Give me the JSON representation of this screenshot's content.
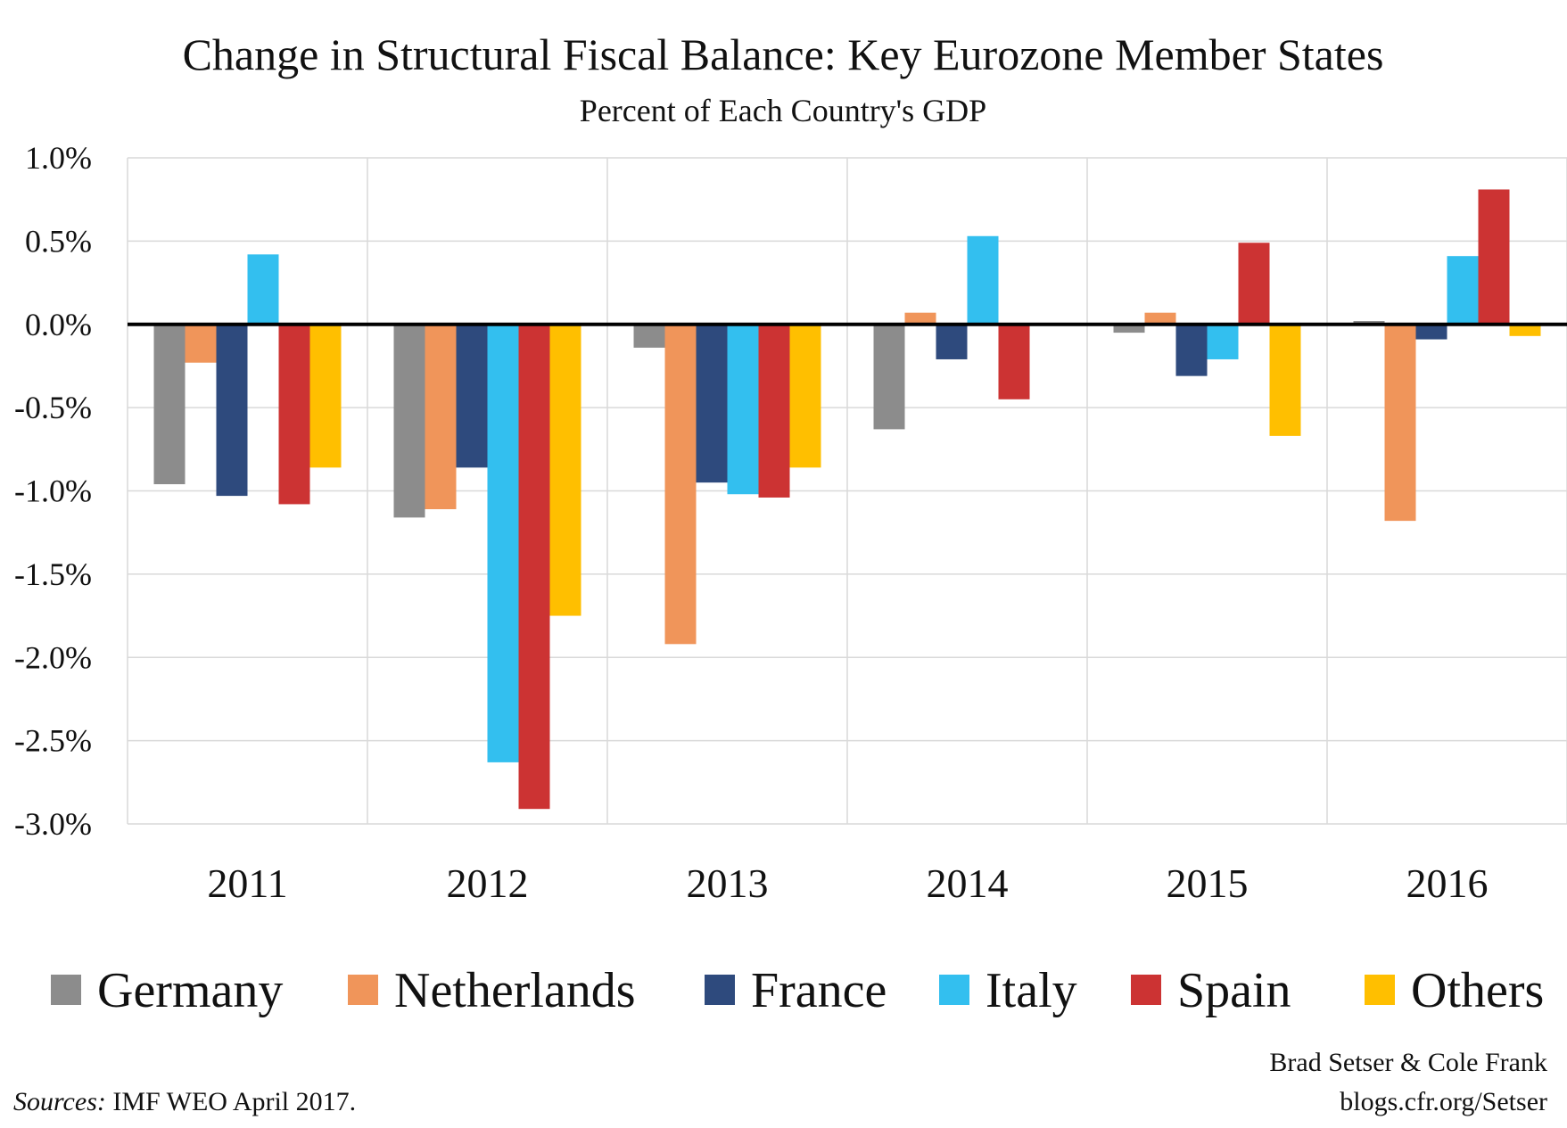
{
  "chart_data": {
    "type": "bar",
    "title": "Change in Structural Fiscal Balance: Key Eurozone Member States",
    "subtitle": "Percent of Each Country's GDP",
    "categories": [
      "2011",
      "2012",
      "2013",
      "2014",
      "2015",
      "2016"
    ],
    "ylim": [
      -3.0,
      1.0
    ],
    "yticks": [
      1.0,
      0.5,
      0.0,
      -0.5,
      -1.0,
      -1.5,
      -2.0,
      -2.5,
      -3.0
    ],
    "ytick_labels": [
      "1.0%",
      "0.5%",
      "0.0%",
      "-0.5%",
      "-1.0%",
      "-1.5%",
      "-2.0%",
      "-2.5%",
      "-3.0%"
    ],
    "grid": true,
    "legend_position": "bottom",
    "series": [
      {
        "name": "Germany",
        "color": "#8c8c8c",
        "values": [
          -0.96,
          -1.16,
          -0.14,
          -0.63,
          -0.05,
          0.02
        ]
      },
      {
        "name": "Netherlands",
        "color": "#f0955a",
        "values": [
          -0.23,
          -1.11,
          -1.92,
          0.07,
          0.07,
          -1.18
        ]
      },
      {
        "name": "France",
        "color": "#2e4a7d",
        "values": [
          -1.03,
          -0.86,
          -0.95,
          -0.21,
          -0.31,
          -0.09
        ]
      },
      {
        "name": "Italy",
        "color": "#33bfef",
        "values": [
          0.42,
          -2.63,
          -1.02,
          0.53,
          -0.21,
          0.41
        ]
      },
      {
        "name": "Spain",
        "color": "#cc3333",
        "values": [
          -1.08,
          -2.91,
          -1.04,
          -0.45,
          0.49,
          0.81
        ]
      },
      {
        "name": "Others",
        "color": "#ffbf00",
        "values": [
          -0.86,
          -1.75,
          -0.86,
          0.0,
          -0.67,
          -0.07
        ]
      }
    ]
  },
  "credits": {
    "authors": "Brad Setser & Cole Frank",
    "site": "blogs.cfr.org/Setser"
  },
  "source": {
    "label": "Sources:",
    "text": " IMF WEO April 2017."
  }
}
